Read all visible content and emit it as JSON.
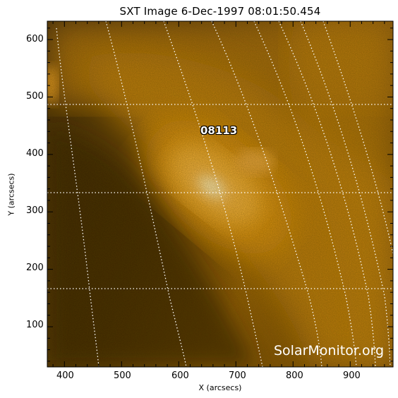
{
  "title": "SXT Image   6-Dec-1997 08:01:50.454",
  "axes": {
    "xlabel": "X (arcsecs)",
    "ylabel": "Y (arcsecs)",
    "xticks": [
      "400",
      "500",
      "600",
      "700",
      "800",
      "900"
    ],
    "yticks": [
      "100",
      "200",
      "300",
      "400",
      "500",
      "600"
    ],
    "xrange": [
      370,
      975
    ],
    "yrange": [
      30,
      632
    ]
  },
  "region_label": "08113",
  "watermark": "SolarMonitor.org",
  "colors": {
    "frame_background": "#ffffff",
    "image_dark": "#3a2508",
    "image_mid": "#a76b08",
    "image_bright": "#ffe79a",
    "grid": "#ffffff"
  }
}
